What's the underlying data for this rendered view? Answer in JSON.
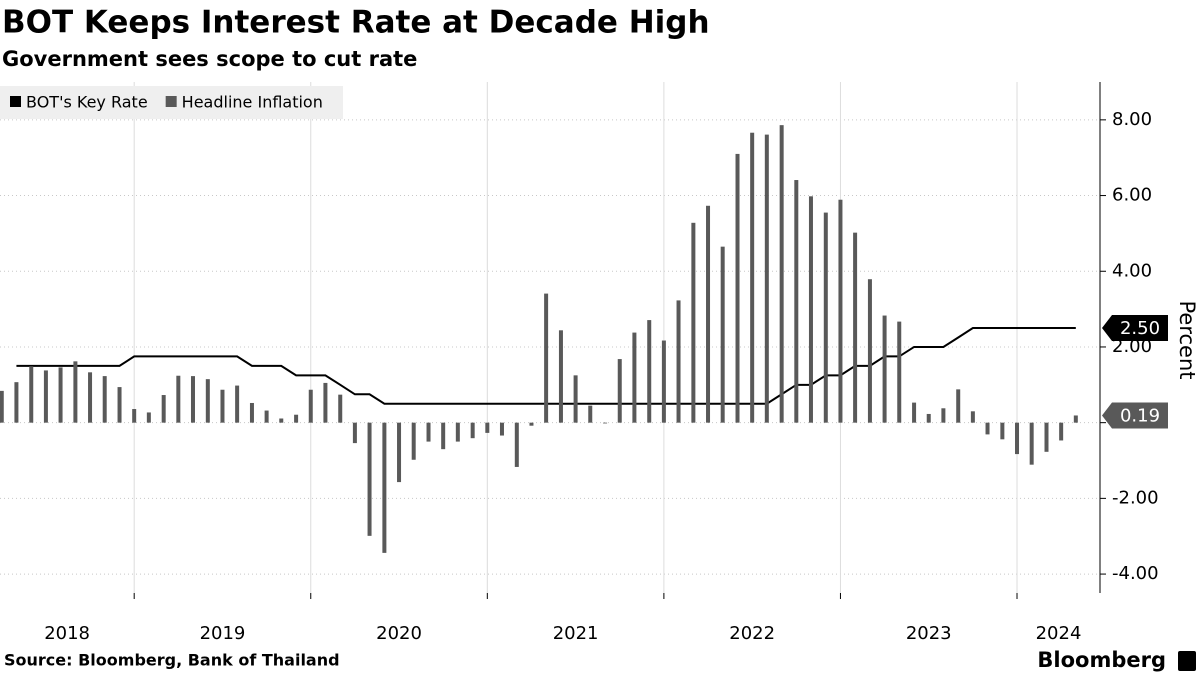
{
  "chart_data": {
    "type": "combo",
    "title": "BOT Keeps Interest Rate at Decade High",
    "subtitle": "Government sees scope to cut rate",
    "source": "Source: Bloomberg, Bank of Thailand",
    "brand": "Bloomberg",
    "y_label": "Percent",
    "x": [
      2018.25,
      2018.333,
      2018.417,
      2018.5,
      2018.583,
      2018.667,
      2018.75,
      2018.833,
      2018.917,
      2019.0,
      2019.083,
      2019.167,
      2019.25,
      2019.333,
      2019.417,
      2019.5,
      2019.583,
      2019.667,
      2019.75,
      2019.833,
      2019.917,
      2020.0,
      2020.083,
      2020.167,
      2020.25,
      2020.333,
      2020.417,
      2020.5,
      2020.583,
      2020.667,
      2020.75,
      2020.833,
      2020.917,
      2021.0,
      2021.083,
      2021.167,
      2021.25,
      2021.333,
      2021.417,
      2021.5,
      2021.583,
      2021.667,
      2021.75,
      2021.833,
      2021.917,
      2022.0,
      2022.083,
      2022.167,
      2022.25,
      2022.333,
      2022.417,
      2022.5,
      2022.583,
      2022.667,
      2022.75,
      2022.833,
      2022.917,
      2023.0,
      2023.083,
      2023.167,
      2023.25,
      2023.333,
      2023.417,
      2023.5,
      2023.583,
      2023.667,
      2023.75,
      2023.833,
      2023.917,
      2024.0,
      2024.083,
      2024.167,
      2024.25,
      2024.333
    ],
    "xlim": [
      2018.24,
      2024.47
    ],
    "xticks": [
      2018,
      2019,
      2020,
      2021,
      2022,
      2023,
      2024
    ],
    "ylim": [
      -4.5,
      9
    ],
    "yticks": [
      {
        "value": -4,
        "label": "-4.00"
      },
      {
        "value": -2,
        "label": "-2.00"
      },
      {
        "value": 0,
        "label": "0.00"
      },
      {
        "value": 2,
        "label": "2.00"
      },
      {
        "value": 4,
        "label": "4.00"
      },
      {
        "value": 6,
        "label": "6.00"
      },
      {
        "value": 8,
        "label": "8.00"
      }
    ],
    "grid": true,
    "legend": "top-left",
    "series": [
      {
        "name": "BOT's Key Rate",
        "type": "line",
        "color": "#000000",
        "last_value_callout": true,
        "values": [
          null,
          1.5,
          1.5,
          1.5,
          1.5,
          1.5,
          1.5,
          1.5,
          1.5,
          1.75,
          1.75,
          1.75,
          1.75,
          1.75,
          1.75,
          1.75,
          1.75,
          1.5,
          1.5,
          1.5,
          1.25,
          1.25,
          1.25,
          1.0,
          0.75,
          0.75,
          0.5,
          0.5,
          0.5,
          0.5,
          0.5,
          0.5,
          0.5,
          0.5,
          0.5,
          0.5,
          0.5,
          0.5,
          0.5,
          0.5,
          0.5,
          0.5,
          0.5,
          0.5,
          0.5,
          0.5,
          0.5,
          0.5,
          0.5,
          0.5,
          0.5,
          0.5,
          0.5,
          0.75,
          1.0,
          1.0,
          1.25,
          1.25,
          1.5,
          1.5,
          1.75,
          1.75,
          2.0,
          2.0,
          2.0,
          2.25,
          2.5,
          2.5,
          2.5,
          2.5,
          2.5,
          2.5,
          2.5,
          2.5
        ],
        "value_labels": [
          null,
          null,
          null,
          null,
          null,
          null,
          null,
          null,
          null,
          null,
          null,
          null,
          null,
          null,
          null,
          null,
          null,
          null,
          null,
          null,
          null,
          null,
          null,
          null,
          null,
          null,
          null,
          null,
          null,
          null,
          null,
          null,
          null,
          null,
          null,
          null,
          null,
          null,
          null,
          null,
          null,
          null,
          null,
          null,
          null,
          null,
          null,
          null,
          null,
          null,
          null,
          null,
          null,
          null,
          null,
          null,
          null,
          null,
          null,
          null,
          null,
          null,
          null,
          null,
          null,
          null,
          null,
          null,
          null,
          null,
          null,
          null,
          null,
          "2.50"
        ]
      },
      {
        "name": "Headline Inflation",
        "type": "bar",
        "color": "#595959",
        "last_value_callout": true,
        "values": [
          0.84,
          1.07,
          1.49,
          1.38,
          1.46,
          1.62,
          1.33,
          1.23,
          0.94,
          0.36,
          0.27,
          0.73,
          1.24,
          1.23,
          1.15,
          0.87,
          0.98,
          0.52,
          0.32,
          0.11,
          0.21,
          0.87,
          1.05,
          0.74,
          -0.54,
          -2.99,
          -3.44,
          -1.57,
          -0.98,
          -0.5,
          -0.7,
          -0.5,
          -0.41,
          -0.27,
          -0.34,
          -1.17,
          -0.08,
          3.41,
          2.44,
          1.25,
          0.45,
          -0.02,
          1.68,
          2.38,
          2.71,
          2.17,
          3.23,
          5.28,
          5.73,
          4.65,
          7.1,
          7.66,
          7.61,
          7.86,
          6.41,
          5.98,
          5.55,
          5.89,
          5.02,
          3.79,
          2.83,
          2.67,
          0.53,
          0.23,
          0.38,
          0.88,
          0.3,
          -0.31,
          -0.44,
          -0.83,
          -1.11,
          -0.77,
          -0.47,
          0.19
        ]
      }
    ]
  }
}
